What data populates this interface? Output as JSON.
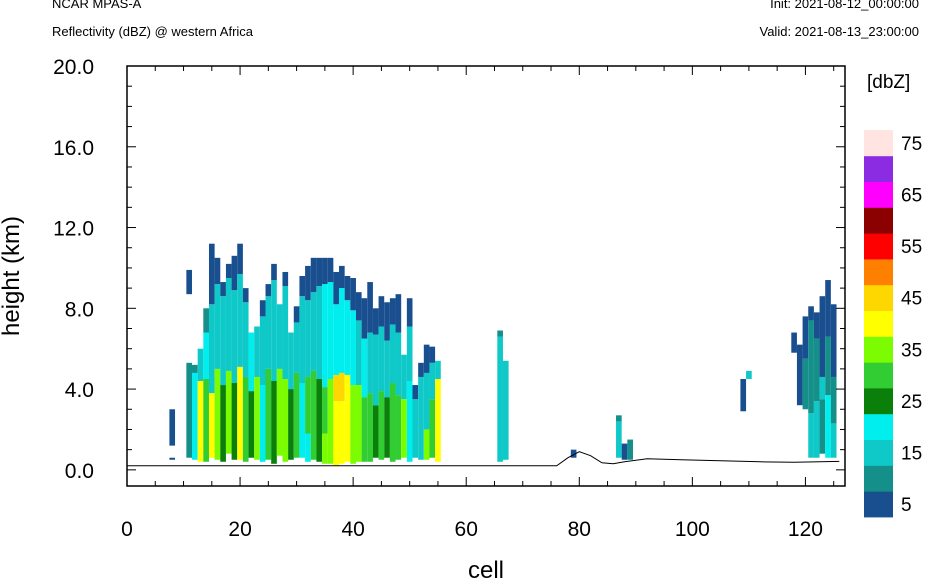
{
  "header": {
    "model": "NCAR MPAS-A",
    "field": "Reflectivity (dBZ) @ western Africa",
    "init": "Init: 2021-08-12_00:00:00",
    "valid": "Valid: 2021-08-13_23:00:00"
  },
  "chart_data": {
    "type": "heatmap",
    "xlabel": "cell",
    "ylabel": "height (km)",
    "xlim": [
      0,
      127
    ],
    "ylim": [
      -0.8,
      20.0
    ],
    "x_ticks": [
      "0",
      "20",
      "40",
      "60",
      "80",
      "100",
      "120"
    ],
    "y_ticks": [
      "0.0",
      "4.0",
      "8.0",
      "12.0",
      "16.0",
      "20.0"
    ],
    "colorbar": {
      "unit_label": "[dbZ]",
      "tick_labels": [
        "5",
        "15",
        "25",
        "35",
        "45",
        "55",
        "65",
        "75"
      ],
      "levels": [
        5,
        10,
        15,
        20,
        25,
        30,
        35,
        40,
        45,
        50,
        55,
        60,
        65,
        70,
        75
      ],
      "colors": [
        "#1a4f8f",
        "#148f8a",
        "#0fc8c8",
        "#00eeee",
        "#0a800a",
        "#32cd32",
        "#7cfc00",
        "#ffff00",
        "#ffd700",
        "#ff8000",
        "#ff0000",
        "#8b0000",
        "#ff00ff",
        "#8b2be2",
        "#ffe4e1"
      ]
    },
    "dbz_columns": [
      {
        "cell": 8,
        "segments": [
          [
            0.5,
            0.6,
            7
          ],
          [
            1.2,
            3.0,
            5
          ]
        ]
      },
      {
        "cell": 11,
        "segments": [
          [
            0.6,
            5.3,
            12
          ],
          [
            8.7,
            9.9,
            5
          ]
        ]
      },
      {
        "cell": 12,
        "segments": [
          [
            0.5,
            4.8,
            22
          ],
          [
            4.8,
            5.2,
            10
          ]
        ]
      },
      {
        "cell": 13,
        "segments": [
          [
            0.4,
            4.4,
            40
          ],
          [
            4.4,
            6.0,
            18
          ]
        ]
      },
      {
        "cell": 14,
        "segments": [
          [
            0.4,
            4.5,
            30
          ],
          [
            4.5,
            6.8,
            20
          ],
          [
            6.8,
            8.0,
            10
          ]
        ]
      },
      {
        "cell": 15,
        "segments": [
          [
            0.6,
            3.8,
            42
          ],
          [
            3.8,
            8.2,
            18
          ],
          [
            8.2,
            11.2,
            8
          ]
        ]
      },
      {
        "cell": 16,
        "segments": [
          [
            0.5,
            5.0,
            36
          ],
          [
            5.0,
            9.2,
            18
          ],
          [
            9.2,
            10.5,
            8
          ]
        ]
      },
      {
        "cell": 17,
        "segments": [
          [
            0.4,
            4.2,
            28
          ],
          [
            4.2,
            8.6,
            17
          ],
          [
            8.6,
            9.3,
            8
          ]
        ]
      },
      {
        "cell": 18,
        "segments": [
          [
            0.8,
            4.9,
            38
          ],
          [
            4.9,
            9.5,
            19
          ],
          [
            9.5,
            10.2,
            7
          ]
        ]
      },
      {
        "cell": 19,
        "segments": [
          [
            0.5,
            4.3,
            26
          ],
          [
            4.3,
            8.9,
            18
          ],
          [
            8.9,
            10.6,
            8
          ]
        ]
      },
      {
        "cell": 20,
        "segments": [
          [
            0.5,
            5.1,
            43
          ],
          [
            5.1,
            9.7,
            18
          ],
          [
            9.7,
            11.2,
            8
          ]
        ]
      },
      {
        "cell": 21,
        "segments": [
          [
            0.4,
            4.6,
            31
          ],
          [
            4.6,
            8.3,
            17
          ],
          [
            8.3,
            9.0,
            7
          ]
        ]
      },
      {
        "cell": 22,
        "segments": [
          [
            0.6,
            3.9,
            27
          ],
          [
            3.9,
            6.8,
            20
          ]
        ]
      },
      {
        "cell": 23,
        "segments": [
          [
            0.5,
            4.6,
            35
          ],
          [
            4.6,
            7.1,
            17
          ]
        ]
      },
      {
        "cell": 24,
        "segments": [
          [
            0.4,
            4.2,
            24
          ],
          [
            4.2,
            7.6,
            18
          ],
          [
            7.6,
            8.4,
            8
          ]
        ]
      },
      {
        "cell": 25,
        "segments": [
          [
            0.5,
            5.0,
            33
          ],
          [
            5.0,
            8.6,
            19
          ],
          [
            8.6,
            9.2,
            7
          ]
        ]
      },
      {
        "cell": 26,
        "segments": [
          [
            0.3,
            4.4,
            29
          ],
          [
            4.4,
            9.4,
            18
          ],
          [
            9.4,
            10.2,
            8
          ]
        ]
      },
      {
        "cell": 27,
        "segments": [
          [
            0.7,
            5.0,
            36
          ],
          [
            5.0,
            8.2,
            17
          ]
        ]
      },
      {
        "cell": 28,
        "segments": [
          [
            0.4,
            4.5,
            38
          ],
          [
            4.5,
            9.1,
            18
          ],
          [
            9.1,
            9.8,
            8
          ]
        ]
      },
      {
        "cell": 29,
        "segments": [
          [
            0.5,
            4.0,
            25
          ],
          [
            4.0,
            6.8,
            19
          ]
        ]
      },
      {
        "cell": 30,
        "segments": [
          [
            0.6,
            4.8,
            32
          ],
          [
            4.8,
            7.3,
            17
          ],
          [
            7.3,
            8.1,
            8
          ]
        ]
      },
      {
        "cell": 31,
        "segments": [
          [
            0.6,
            4.3,
            22
          ],
          [
            4.3,
            8.6,
            18
          ],
          [
            8.6,
            9.6,
            7
          ]
        ]
      },
      {
        "cell": 32,
        "segments": [
          [
            0.4,
            1.8,
            20
          ],
          [
            1.8,
            4.6,
            32
          ],
          [
            4.6,
            8.4,
            18
          ],
          [
            8.4,
            10.1,
            8
          ]
        ]
      },
      {
        "cell": 33,
        "segments": [
          [
            0.5,
            4.9,
            30
          ],
          [
            4.9,
            8.8,
            18
          ],
          [
            8.8,
            10.5,
            8
          ]
        ]
      },
      {
        "cell": 34,
        "segments": [
          [
            0.4,
            4.5,
            28
          ],
          [
            4.5,
            9.1,
            19
          ],
          [
            9.1,
            10.5,
            8
          ]
        ]
      },
      {
        "cell": 35,
        "segments": [
          [
            0.3,
            1.8,
            35
          ],
          [
            1.8,
            4.1,
            33
          ],
          [
            4.1,
            9.2,
            20
          ],
          [
            9.2,
            10.5,
            7
          ]
        ]
      },
      {
        "cell": 36,
        "segments": [
          [
            0.3,
            4.5,
            38
          ],
          [
            4.5,
            9.3,
            21
          ],
          [
            9.3,
            10.5,
            8
          ]
        ]
      },
      {
        "cell": 37,
        "segments": [
          [
            0.2,
            3.4,
            41
          ],
          [
            3.4,
            4.7,
            46
          ],
          [
            4.7,
            8.2,
            22
          ],
          [
            8.2,
            9.8,
            8
          ]
        ]
      },
      {
        "cell": 38,
        "segments": [
          [
            0.3,
            3.4,
            42
          ],
          [
            3.4,
            4.8,
            46
          ],
          [
            4.8,
            9.0,
            21
          ],
          [
            9.0,
            10.1,
            7
          ]
        ]
      },
      {
        "cell": 39,
        "segments": [
          [
            0.4,
            3.3,
            40
          ],
          [
            3.3,
            4.7,
            44
          ],
          [
            4.7,
            8.4,
            20
          ],
          [
            8.4,
            9.6,
            7
          ]
        ]
      },
      {
        "cell": 40,
        "segments": [
          [
            0.3,
            4.2,
            38
          ],
          [
            4.2,
            7.9,
            20
          ],
          [
            7.9,
            9.5,
            8
          ]
        ]
      },
      {
        "cell": 41,
        "segments": [
          [
            0.4,
            4.2,
            36
          ],
          [
            4.2,
            7.4,
            18
          ],
          [
            7.4,
            8.8,
            8
          ]
        ]
      },
      {
        "cell": 42,
        "segments": [
          [
            0.4,
            3.6,
            33
          ],
          [
            3.6,
            6.5,
            22
          ],
          [
            6.5,
            8.5,
            8
          ]
        ]
      },
      {
        "cell": 43,
        "segments": [
          [
            0.4,
            3.8,
            30
          ],
          [
            3.8,
            6.8,
            18
          ],
          [
            6.8,
            9.3,
            7
          ]
        ]
      },
      {
        "cell": 44,
        "segments": [
          [
            0.6,
            3.2,
            28
          ],
          [
            3.2,
            6.7,
            18
          ],
          [
            6.7,
            8.0,
            8
          ]
        ]
      },
      {
        "cell": 45,
        "segments": [
          [
            0.5,
            3.9,
            33
          ],
          [
            3.9,
            7.1,
            18
          ],
          [
            7.1,
            8.6,
            8
          ]
        ]
      },
      {
        "cell": 46,
        "segments": [
          [
            0.6,
            3.6,
            26
          ],
          [
            3.6,
            6.4,
            17
          ],
          [
            6.4,
            8.3,
            7
          ]
        ]
      },
      {
        "cell": 47,
        "segments": [
          [
            0.4,
            4.3,
            34
          ],
          [
            4.3,
            7.2,
            17
          ],
          [
            7.2,
            8.5,
            8
          ]
        ]
      },
      {
        "cell": 48,
        "segments": [
          [
            0.5,
            3.7,
            30
          ],
          [
            3.7,
            6.8,
            17
          ],
          [
            6.8,
            8.7,
            7
          ]
        ]
      },
      {
        "cell": 49,
        "segments": [
          [
            0.6,
            3.5,
            36
          ],
          [
            3.5,
            5.7,
            16
          ]
        ]
      },
      {
        "cell": 50,
        "segments": [
          [
            0.4,
            4.4,
            20
          ],
          [
            4.4,
            7.1,
            15
          ],
          [
            7.1,
            8.5,
            7
          ]
        ]
      },
      {
        "cell": 51,
        "segments": [
          [
            0.6,
            3.5,
            16
          ],
          [
            3.5,
            4.2,
            7
          ]
        ]
      },
      {
        "cell": 52,
        "segments": [
          [
            0.5,
            4.6,
            15
          ],
          [
            4.6,
            5.3,
            8
          ]
        ]
      },
      {
        "cell": 53,
        "segments": [
          [
            0.5,
            2.0,
            35
          ],
          [
            2.0,
            4.8,
            16
          ],
          [
            4.8,
            6.2,
            7
          ]
        ]
      },
      {
        "cell": 54,
        "segments": [
          [
            0.6,
            3.5,
            34
          ],
          [
            3.5,
            5.3,
            15
          ],
          [
            5.3,
            6.1,
            7
          ]
        ]
      },
      {
        "cell": 55,
        "segments": [
          [
            0.4,
            4.5,
            40
          ],
          [
            4.5,
            5.4,
            16
          ]
        ]
      },
      {
        "cell": 66,
        "segments": [
          [
            0.4,
            6.6,
            15
          ],
          [
            6.6,
            6.9,
            12
          ]
        ]
      },
      {
        "cell": 67,
        "segments": [
          [
            0.5,
            5.4,
            15
          ]
        ]
      },
      {
        "cell": 79,
        "segments": [
          [
            0.6,
            1.0,
            7
          ]
        ]
      },
      {
        "cell": 87,
        "segments": [
          [
            0.6,
            2.4,
            16
          ],
          [
            2.4,
            2.7,
            10
          ]
        ]
      },
      {
        "cell": 88,
        "segments": [
          [
            0.5,
            1.3,
            8
          ]
        ]
      },
      {
        "cell": 89,
        "segments": [
          [
            0.5,
            1.5,
            11
          ]
        ]
      },
      {
        "cell": 109,
        "segments": [
          [
            2.9,
            4.5,
            7
          ]
        ]
      },
      {
        "cell": 110,
        "segments": [
          [
            4.5,
            4.9,
            15
          ]
        ]
      },
      {
        "cell": 118,
        "segments": [
          [
            5.8,
            6.8,
            8
          ]
        ]
      },
      {
        "cell": 119,
        "segments": [
          [
            3.2,
            6.2,
            8
          ]
        ]
      },
      {
        "cell": 120,
        "segments": [
          [
            3.0,
            5.5,
            14
          ],
          [
            5.5,
            7.6,
            8
          ]
        ]
      },
      {
        "cell": 121,
        "segments": [
          [
            0.6,
            2.8,
            16
          ],
          [
            2.8,
            7.4,
            13
          ],
          [
            7.4,
            8.1,
            8
          ]
        ]
      },
      {
        "cell": 122,
        "segments": [
          [
            0.6,
            3.4,
            15
          ],
          [
            3.4,
            6.5,
            12
          ],
          [
            6.5,
            7.8,
            8
          ]
        ]
      },
      {
        "cell": 123,
        "segments": [
          [
            0.8,
            3.5,
            12
          ],
          [
            3.5,
            4.6,
            17
          ],
          [
            4.6,
            8.6,
            8
          ]
        ]
      },
      {
        "cell": 124,
        "segments": [
          [
            0.6,
            3.7,
            20
          ],
          [
            3.7,
            6.6,
            12
          ],
          [
            6.6,
            9.4,
            8
          ]
        ]
      },
      {
        "cell": 125,
        "segments": [
          [
            0.6,
            2.3,
            15
          ],
          [
            2.3,
            4.6,
            12
          ],
          [
            4.6,
            8.2,
            7
          ]
        ]
      }
    ],
    "terrain_km": [
      [
        0,
        0.2
      ],
      [
        76,
        0.2
      ],
      [
        78,
        0.6
      ],
      [
        80,
        0.9
      ],
      [
        82,
        0.7
      ],
      [
        84,
        0.35
      ],
      [
        86,
        0.3
      ],
      [
        88,
        0.4
      ],
      [
        92,
        0.55
      ],
      [
        98,
        0.5
      ],
      [
        105,
        0.45
      ],
      [
        112,
        0.4
      ],
      [
        118,
        0.38
      ],
      [
        126,
        0.42
      ]
    ]
  }
}
